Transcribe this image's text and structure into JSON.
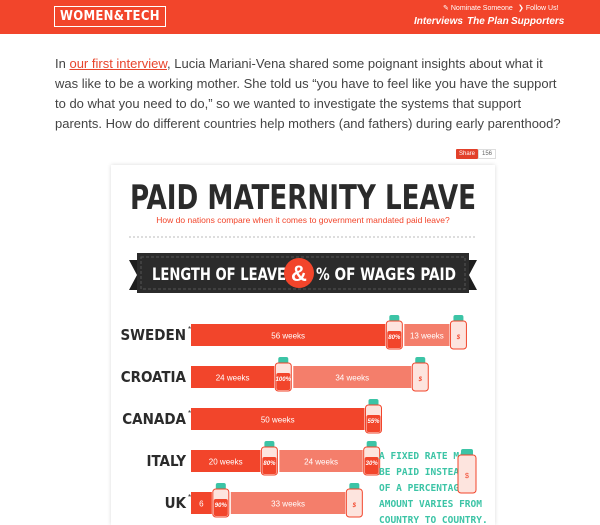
{
  "header": {
    "logo": "WOMEN&TECH",
    "nominate": "Nominate Someone",
    "follow": "Follow Us!",
    "nav": [
      "Interviews",
      "The Plan",
      "Supporters"
    ]
  },
  "intro": {
    "lead": "In ",
    "link": "our first interview",
    "rest": ", Lucia Mariani-Vena shared some poignant insights about what it was like to be a working mother. She told us “you have to feel like you have the support to do what you need to do,” so we wanted to investigate the systems that support parents. How do different countries help mothers (and fathers) during early parenthood?"
  },
  "share": {
    "label": "Share",
    "count": "156"
  },
  "infographic": {
    "title": "PAID MATERNITY LEAVE",
    "subtitle": "How do nations compare when it comes to government mandated paid leave?",
    "banner": {
      "left": "LENGTH OF LEAVE",
      "amp": "&",
      "right": "% OF WAGES PAID"
    },
    "note": [
      "A FIXED RATE MAY",
      "BE PAID INSTEAD",
      "OF A PERCENTAGE;",
      "AMOUNT VARIES FROM",
      "COUNTRY TO COUNTRY."
    ],
    "colors": {
      "red": "#f2452b",
      "salmon": "#f47e6b",
      "dark": "#2b2b2b",
      "teal": "#3cc4a6"
    }
  },
  "chart_data": {
    "type": "bar",
    "title": "PAID MATERNITY LEAVE",
    "subtitle": "How do nations compare when it comes to government mandated paid leave?",
    "categories": [
      "SWEDEN",
      "CROATIA",
      "CANADA",
      "ITALY",
      "UK"
    ],
    "rows": [
      {
        "country": "SWEDEN",
        "starred": true,
        "segments": [
          {
            "weeks": 56,
            "label": "56 weeks",
            "wage": "80%"
          },
          {
            "weeks": 13,
            "label": "13 weeks",
            "wage": "$"
          }
        ]
      },
      {
        "country": "CROATIA",
        "starred": false,
        "segments": [
          {
            "weeks": 24,
            "label": "24 weeks",
            "wage": "100%"
          },
          {
            "weeks": 34,
            "label": "34 weeks",
            "wage": "$"
          }
        ]
      },
      {
        "country": "CANADA",
        "starred": true,
        "segments": [
          {
            "weeks": 50,
            "label": "50 weeks",
            "wage": "55%"
          }
        ]
      },
      {
        "country": "ITALY",
        "starred": false,
        "segments": [
          {
            "weeks": 20,
            "label": "20 weeks",
            "wage": "80%"
          },
          {
            "weeks": 24,
            "label": "24 weeks",
            "wage": "30%"
          }
        ]
      },
      {
        "country": "UK",
        "starred": true,
        "segments": [
          {
            "weeks": 6,
            "label": "6",
            "wage": "90%"
          },
          {
            "weeks": 33,
            "label": "33 weeks",
            "wage": "$"
          }
        ]
      }
    ]
  }
}
